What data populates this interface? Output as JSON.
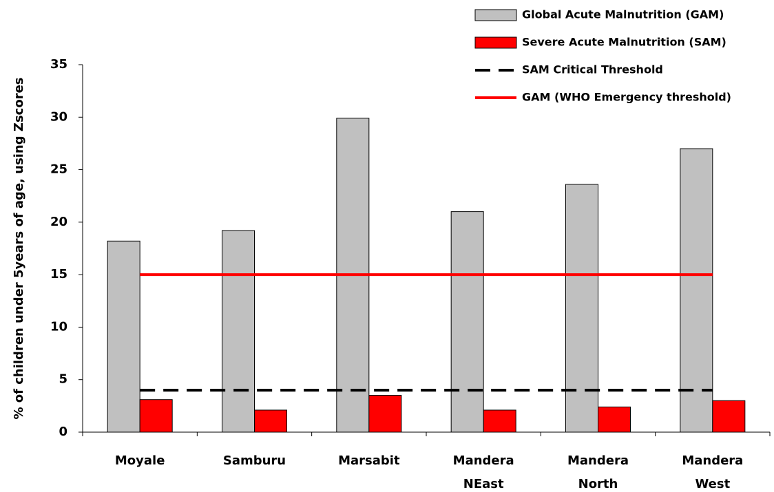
{
  "chart_data": {
    "type": "bar",
    "y_label": "% of children under 5years of age, using Zscores",
    "categories": [
      "Moyale",
      "Samburu",
      "Marsabit",
      "Mandera NEast",
      "Mandera North",
      "Mandera West"
    ],
    "ylim": [
      0,
      35
    ],
    "yticks": [
      0,
      5,
      10,
      15,
      20,
      25,
      30,
      35
    ],
    "legend": "top-right",
    "series": [
      {
        "name": "Global Acute Malnutrition (GAM)",
        "type": "bar",
        "color": "#c0c0c0",
        "values": [
          18.2,
          19.2,
          29.9,
          21.0,
          23.6,
          27.0
        ]
      },
      {
        "name": "Severe Acute Malnutrition (SAM)",
        "type": "bar",
        "color": "#ff0000",
        "values": [
          3.1,
          2.1,
          3.5,
          2.1,
          2.4,
          3.0
        ]
      },
      {
        "name": "SAM Critical Threshold",
        "type": "line",
        "line_style": "dashed",
        "color": "#000000",
        "values": [
          4,
          4,
          4,
          4,
          4,
          4
        ]
      },
      {
        "name": "GAM (WHO Emergency threshold)",
        "type": "line",
        "line_style": "solid",
        "color": "#ff0000",
        "values": [
          15,
          15,
          15,
          15,
          15,
          15
        ]
      }
    ]
  }
}
